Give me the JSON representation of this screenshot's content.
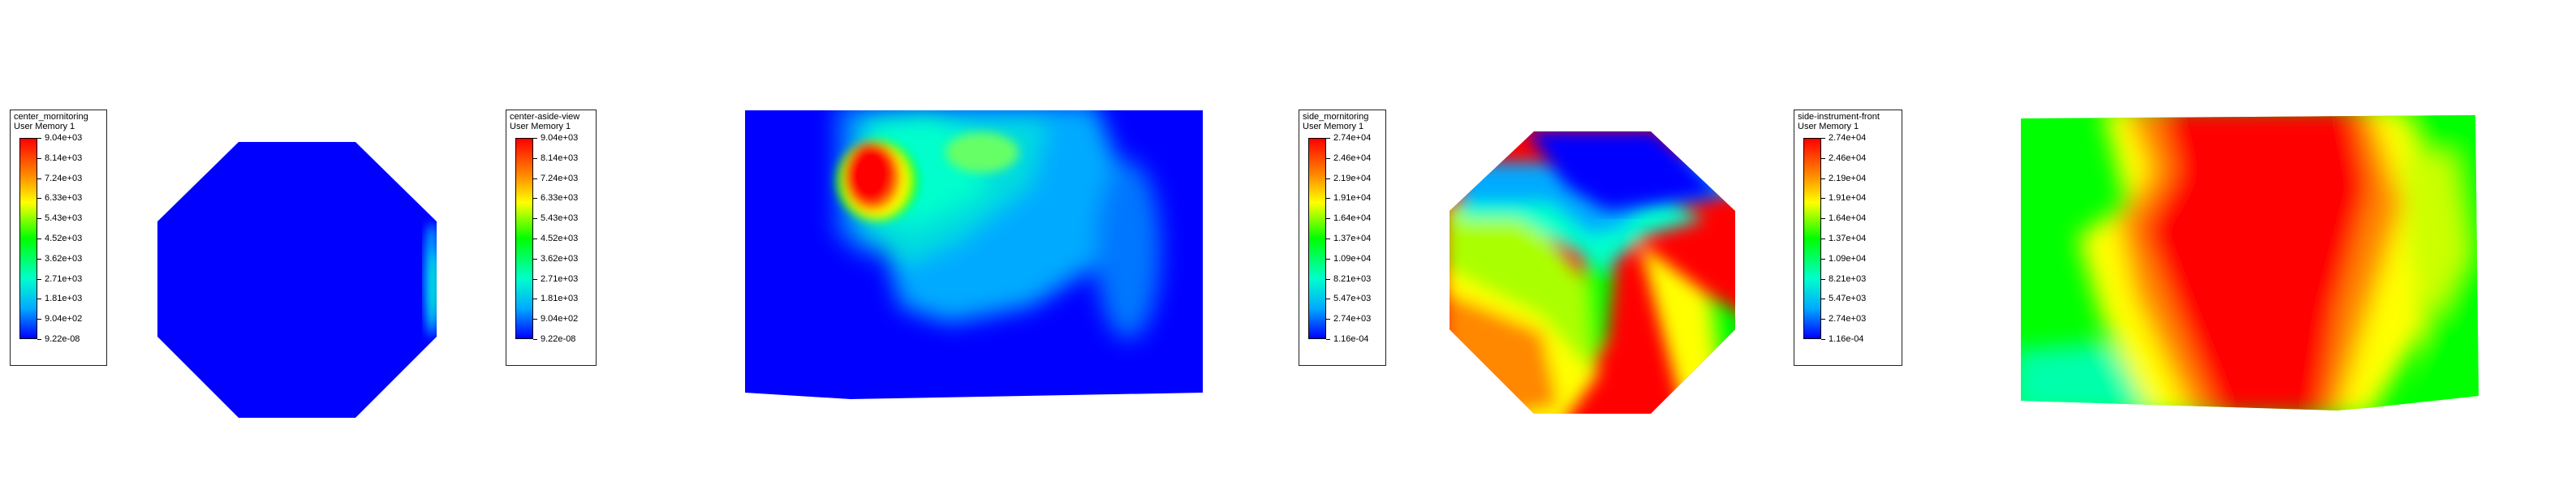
{
  "colors": {
    "blue": "#0000ff",
    "cyan": "#00ffcc",
    "green": "#00ff00",
    "yellow": "#ffff00",
    "red": "#ff0000"
  },
  "legends": [
    {
      "name": "center_mornitoring",
      "sub": "User Memory 1",
      "labels": [
        "9.04e+03",
        "8.14e+03",
        "7.24e+03",
        "6.33e+03",
        "5.43e+03",
        "4.52e+03",
        "3.62e+03",
        "2.71e+03",
        "1.81e+03",
        "9.04e+02",
        "9.22e-08"
      ]
    },
    {
      "name": "center-aside-view",
      "sub": "User Memory 1",
      "labels": [
        "9.04e+03",
        "8.14e+03",
        "7.24e+03",
        "6.33e+03",
        "5.43e+03",
        "4.52e+03",
        "3.62e+03",
        "2.71e+03",
        "1.81e+03",
        "9.04e+02",
        "9.22e-08"
      ]
    },
    {
      "name": "side_mornitoring",
      "sub": "User Memory 1",
      "labels": [
        "2.74e+04",
        "2.46e+04",
        "2.19e+04",
        "1.91e+04",
        "1.64e+04",
        "1.37e+04",
        "1.09e+04",
        "8.21e+03",
        "5.47e+03",
        "2.74e+03",
        "1.16e-04"
      ]
    },
    {
      "name": "side-instrument-front",
      "sub": "User Memory 1",
      "labels": [
        "2.74e+04",
        "2.46e+04",
        "2.19e+04",
        "1.91e+04",
        "1.64e+04",
        "1.37e+04",
        "1.09e+04",
        "8.21e+03",
        "5.47e+03",
        "2.74e+03",
        "1.16e-04"
      ]
    }
  ]
}
